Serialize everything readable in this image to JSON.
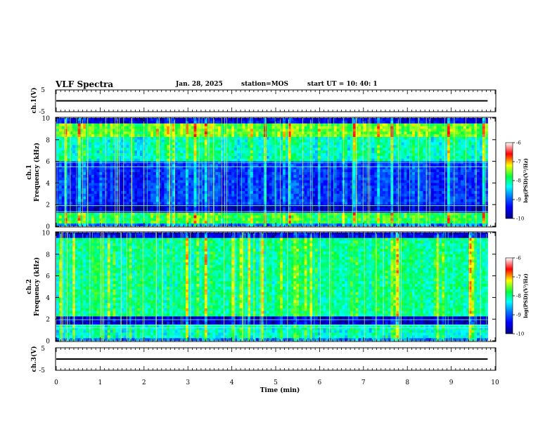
{
  "header": {
    "title": "VLF Spectra",
    "date": "Jan. 28, 2025",
    "station": "station=MOS",
    "start": "start UT =   10: 40: 1"
  },
  "chart_data": [
    {
      "type": "line",
      "ylabel": "ch.1(V)",
      "ylim": [
        -5,
        5
      ],
      "yticks": [
        "5",
        "-5"
      ],
      "series": [
        {
          "x": [
            0,
            9.83
          ],
          "y": [
            0,
            0
          ]
        }
      ]
    },
    {
      "type": "heatmap",
      "ylabel_top": "ch.1",
      "ylabel": "Frequency (kHz)",
      "ylim": [
        0,
        10
      ],
      "yticks": [
        "0",
        "2",
        "4",
        "6",
        "8",
        "10"
      ],
      "xlim": [
        0,
        10
      ],
      "x_data_end": 9.83,
      "colorbar": {
        "label": "log(PSD)(V²/Hz)",
        "ticks": [
          "-6",
          "-7",
          "-8",
          "-9",
          "-10"
        ],
        "range": [
          -10,
          -6
        ]
      }
    },
    {
      "type": "heatmap",
      "ylabel_top": "ch.2",
      "ylabel": "Frequency (kHz)",
      "ylim": [
        0,
        10
      ],
      "yticks": [
        "0",
        "2",
        "4",
        "6",
        "8",
        "10"
      ],
      "xlim": [
        0,
        10
      ],
      "x_data_end": 9.83,
      "colorbar": {
        "label": "log(PSD)(V²/Hz)",
        "ticks": [
          "-6",
          "-7",
          "-8",
          "-9",
          "-10"
        ],
        "range": [
          -10,
          -6
        ]
      }
    },
    {
      "type": "line",
      "ylabel": "ch.3(V)",
      "ylim": [
        -5,
        5
      ],
      "yticks": [
        "5",
        "-5"
      ],
      "xlabel": "Time (min)",
      "xlim": [
        0,
        10
      ],
      "xticks": [
        "0",
        "1",
        "2",
        "3",
        "4",
        "5",
        "6",
        "7",
        "8",
        "9",
        "10"
      ],
      "series": [
        {
          "x": [
            0,
            9.83
          ],
          "y": [
            0,
            0
          ]
        }
      ]
    }
  ]
}
